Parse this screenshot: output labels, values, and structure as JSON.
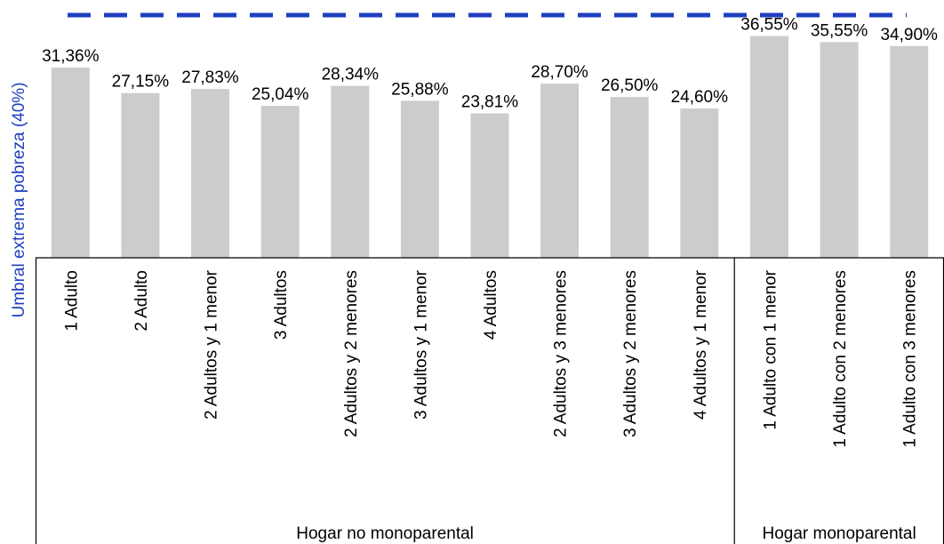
{
  "chart_data": {
    "type": "bar",
    "ylabel": "Umbral extrema pobreza (40%)",
    "ylim": [
      0,
      40
    ],
    "threshold": {
      "value": 40,
      "color": "#1f3fbf",
      "style": "dashed"
    },
    "bar_color": "#cccccc",
    "categories": [
      "1 Adulto",
      "2 Adulto",
      "2 Adultos y 1 menor",
      "3 Adultos",
      "2 Adultos y 2 menores",
      "3 Adultos y 1 menor",
      "4 Adultos",
      "2 Adultos y 3 menores",
      "3 Adultos y 2 menores",
      "4 Adultos y 1 menor",
      "1 Adulto con 1 menor",
      "1 Adulto con 2 menores",
      "1 Adulto con 3 menores"
    ],
    "values": [
      31.36,
      27.15,
      27.83,
      25.04,
      28.34,
      25.88,
      23.81,
      28.7,
      26.5,
      24.6,
      36.55,
      35.55,
      34.9
    ],
    "data_labels": [
      "31,36%",
      "27,15%",
      "27,83%",
      "25,04%",
      "28,34%",
      "25,88%",
      "23,81%",
      "28,70%",
      "26,50%",
      "24,60%",
      "36,55%",
      "35,55%",
      "34,90%"
    ],
    "groups": [
      {
        "label": "Hogar no monoparental",
        "start": 0,
        "count": 10
      },
      {
        "label": "Hogar monoparental",
        "start": 10,
        "count": 3
      }
    ],
    "grid": false,
    "legend": "none"
  }
}
